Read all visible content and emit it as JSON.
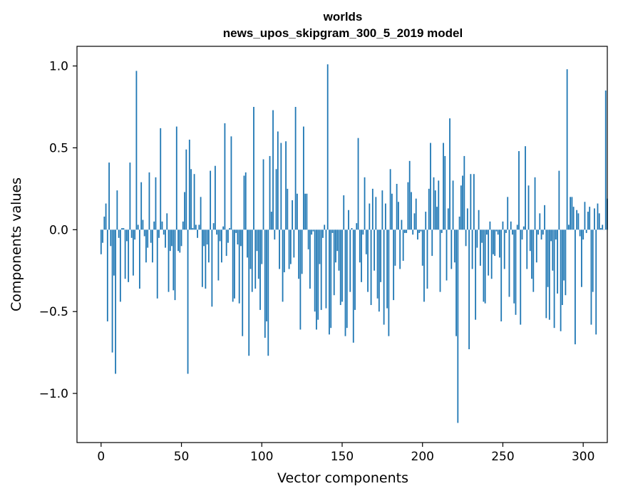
{
  "chart_data": {
    "type": "bar",
    "title_line1": "worlds",
    "title_line2": "news_upos_skipgram_300_5_2019 model",
    "xlabel": "Vector components",
    "ylabel": "Components values",
    "xlim": [
      -15,
      315
    ],
    "ylim": [
      -1.3,
      1.12
    ],
    "xticks": [
      0,
      50,
      100,
      150,
      200,
      250,
      300
    ],
    "xtick_labels": [
      "0",
      "50",
      "100",
      "150",
      "200",
      "250",
      "300"
    ],
    "yticks": [
      -1.0,
      -0.5,
      0.0,
      0.5,
      1.0
    ],
    "ytick_labels": [
      "−1.0",
      "−0.5",
      "0.0",
      "0.5",
      "1.0"
    ],
    "bar_color": "#1f77b4",
    "values": [
      -0.15,
      -0.08,
      0.08,
      0.16,
      -0.56,
      0.41,
      -0.1,
      -0.75,
      -0.28,
      -0.88,
      0.24,
      -0.05,
      -0.44,
      0.01,
      0.01,
      -0.3,
      -0.07,
      -0.32,
      0.41,
      -0.05,
      -0.28,
      -0.06,
      0.97,
      0.03,
      -0.36,
      0.29,
      0.06,
      -0.04,
      -0.2,
      -0.11,
      0.35,
      -0.08,
      -0.2,
      0.05,
      0.32,
      -0.42,
      -0.05,
      0.62,
      0.05,
      -0.03,
      -0.11,
      0.1,
      -0.38,
      -0.13,
      -0.1,
      -0.37,
      -0.43,
      0.63,
      -0.13,
      -0.14,
      -0.1,
      0.05,
      0.23,
      0.49,
      -0.88,
      0.55,
      0.37,
      0.01,
      0.34,
      0.03,
      -0.05,
      0.03,
      0.2,
      -0.35,
      -0.1,
      -0.36,
      -0.09,
      -0.2,
      0.36,
      -0.47,
      0.04,
      0.39,
      -0.03,
      -0.31,
      -0.07,
      -0.2,
      0.02,
      0.65,
      -0.16,
      -0.08,
      0.01,
      0.57,
      -0.44,
      -0.42,
      -0.02,
      -0.09,
      -0.45,
      -0.1,
      -0.65,
      0.33,
      0.35,
      -0.17,
      -0.77,
      -0.24,
      -0.38,
      0.75,
      -0.36,
      -0.13,
      -0.3,
      -0.49,
      -0.21,
      0.43,
      -0.66,
      -0.56,
      -0.77,
      0.45,
      0.11,
      0.73,
      -0.06,
      0.37,
      0.6,
      -0.24,
      0.53,
      -0.44,
      -0.26,
      0.54,
      0.25,
      -0.24,
      -0.21,
      0.18,
      -0.17,
      0.75,
      0.22,
      -0.3,
      -0.61,
      -0.27,
      0.63,
      0.22,
      0.22,
      -0.12,
      -0.36,
      -0.03,
      -0.01,
      -0.5,
      -0.61,
      -0.55,
      -0.21,
      -0.49,
      -0.05,
      0.03,
      -0.48,
      1.01,
      -0.64,
      -0.6,
      -0.02,
      -0.4,
      -0.2,
      -0.13,
      -0.25,
      -0.46,
      -0.44,
      0.21,
      -0.65,
      -0.6,
      0.12,
      -0.38,
      0.01,
      -0.69,
      -0.49,
      0.04,
      0.56,
      -0.2,
      -0.32,
      -0.03,
      0.32,
      -0.15,
      -0.38,
      0.16,
      -0.46,
      0.25,
      -0.25,
      0.2,
      -0.42,
      -0.5,
      -0.32,
      0.24,
      -0.58,
      0.16,
      -0.48,
      -0.65,
      0.37,
      0.22,
      -0.43,
      -0.22,
      0.28,
      0.17,
      -0.24,
      0.06,
      -0.19,
      -0.02,
      -0.02,
      0.29,
      0.42,
      0.23,
      -0.03,
      0.1,
      0.19,
      -0.06,
      -0.02,
      -0.01,
      -0.22,
      -0.44,
      0.11,
      -0.36,
      0.25,
      0.53,
      -0.16,
      0.32,
      0.24,
      0.14,
      0.3,
      -0.38,
      -0.02,
      0.53,
      0.45,
      -0.31,
      0.13,
      0.68,
      -0.24,
      0.3,
      -0.2,
      -0.65,
      -1.18,
      0.08,
      0.27,
      0.33,
      0.45,
      -0.1,
      0.13,
      -0.73,
      0.34,
      -0.24,
      0.34,
      -0.55,
      -0.11,
      0.12,
      -0.22,
      -0.08,
      -0.44,
      -0.45,
      -0.03,
      -0.28,
      0.05,
      -0.3,
      -0.15,
      -0.16,
      -0.01,
      -0.03,
      -0.17,
      -0.56,
      0.05,
      -0.24,
      -0.02,
      0.2,
      -0.41,
      0.05,
      -0.03,
      -0.45,
      -0.52,
      0.03,
      0.48,
      -0.58,
      -0.06,
      0.02,
      0.51,
      -0.24,
      0.27,
      -0.13,
      -0.3,
      -0.38,
      0.32,
      -0.2,
      -0.03,
      0.1,
      -0.06,
      -0.03,
      0.15,
      -0.54,
      -0.35,
      -0.55,
      -0.07,
      -0.25,
      -0.6,
      -0.06,
      -0.39,
      0.36,
      -0.62,
      -0.46,
      -0.31,
      -0.4,
      0.98,
      0.03,
      0.2,
      0.2,
      0.14,
      -0.7,
      0.12,
      0.1,
      -0.04,
      -0.35,
      -0.06,
      0.17,
      -0.02,
      0.11,
      0.14,
      -0.58,
      -0.38,
      0.13,
      -0.64,
      0.16,
      0.1,
      0.01,
      0.03,
      0.0,
      0.85,
      0.19
    ]
  }
}
